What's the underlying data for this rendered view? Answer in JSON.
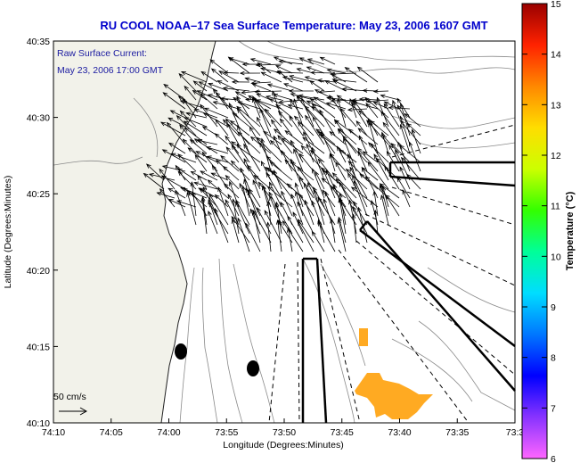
{
  "title": "RU COOL  NOAA–17  Sea Surface Temperature:  May 23, 2006 1607 GMT",
  "legend": {
    "line1": "Raw Surface Current:",
    "line2": "May 23, 2006 17:00 GMT"
  },
  "scale_label": "50 cm/s",
  "xlabel": "Longitude (Degrees:Minutes)",
  "ylabel": "Latitude (Degrees:Minutes)",
  "xticks": [
    "74:10",
    "74:05",
    "74:00",
    "73:55",
    "73:50",
    "73:45",
    "73:40",
    "73:35",
    "73:3"
  ],
  "yticks": [
    "40:35",
    "40:30",
    "40:25",
    "40:20",
    "40:15",
    "40:10"
  ],
  "colorbar": {
    "label": "Temperature (°C)",
    "ticks": [
      "15",
      "14",
      "13",
      "12",
      "11",
      "10",
      "9",
      "8",
      "7",
      "6"
    ],
    "min": 6,
    "max": 15,
    "colors": [
      "#ff66ff",
      "#8833ff",
      "#0000ff",
      "#0077ff",
      "#00ddff",
      "#00ff99",
      "#33ff00",
      "#ccff00",
      "#ffdd00",
      "#ff8800",
      "#ff2200",
      "#990000"
    ]
  },
  "colors": {
    "title": "#0000cc",
    "legend": "#1a1aa0",
    "land": "#f2f2ea",
    "sst_patch": "#ffaa22",
    "arrows": "#000000",
    "bathymetry": "#8a8a8a"
  }
}
